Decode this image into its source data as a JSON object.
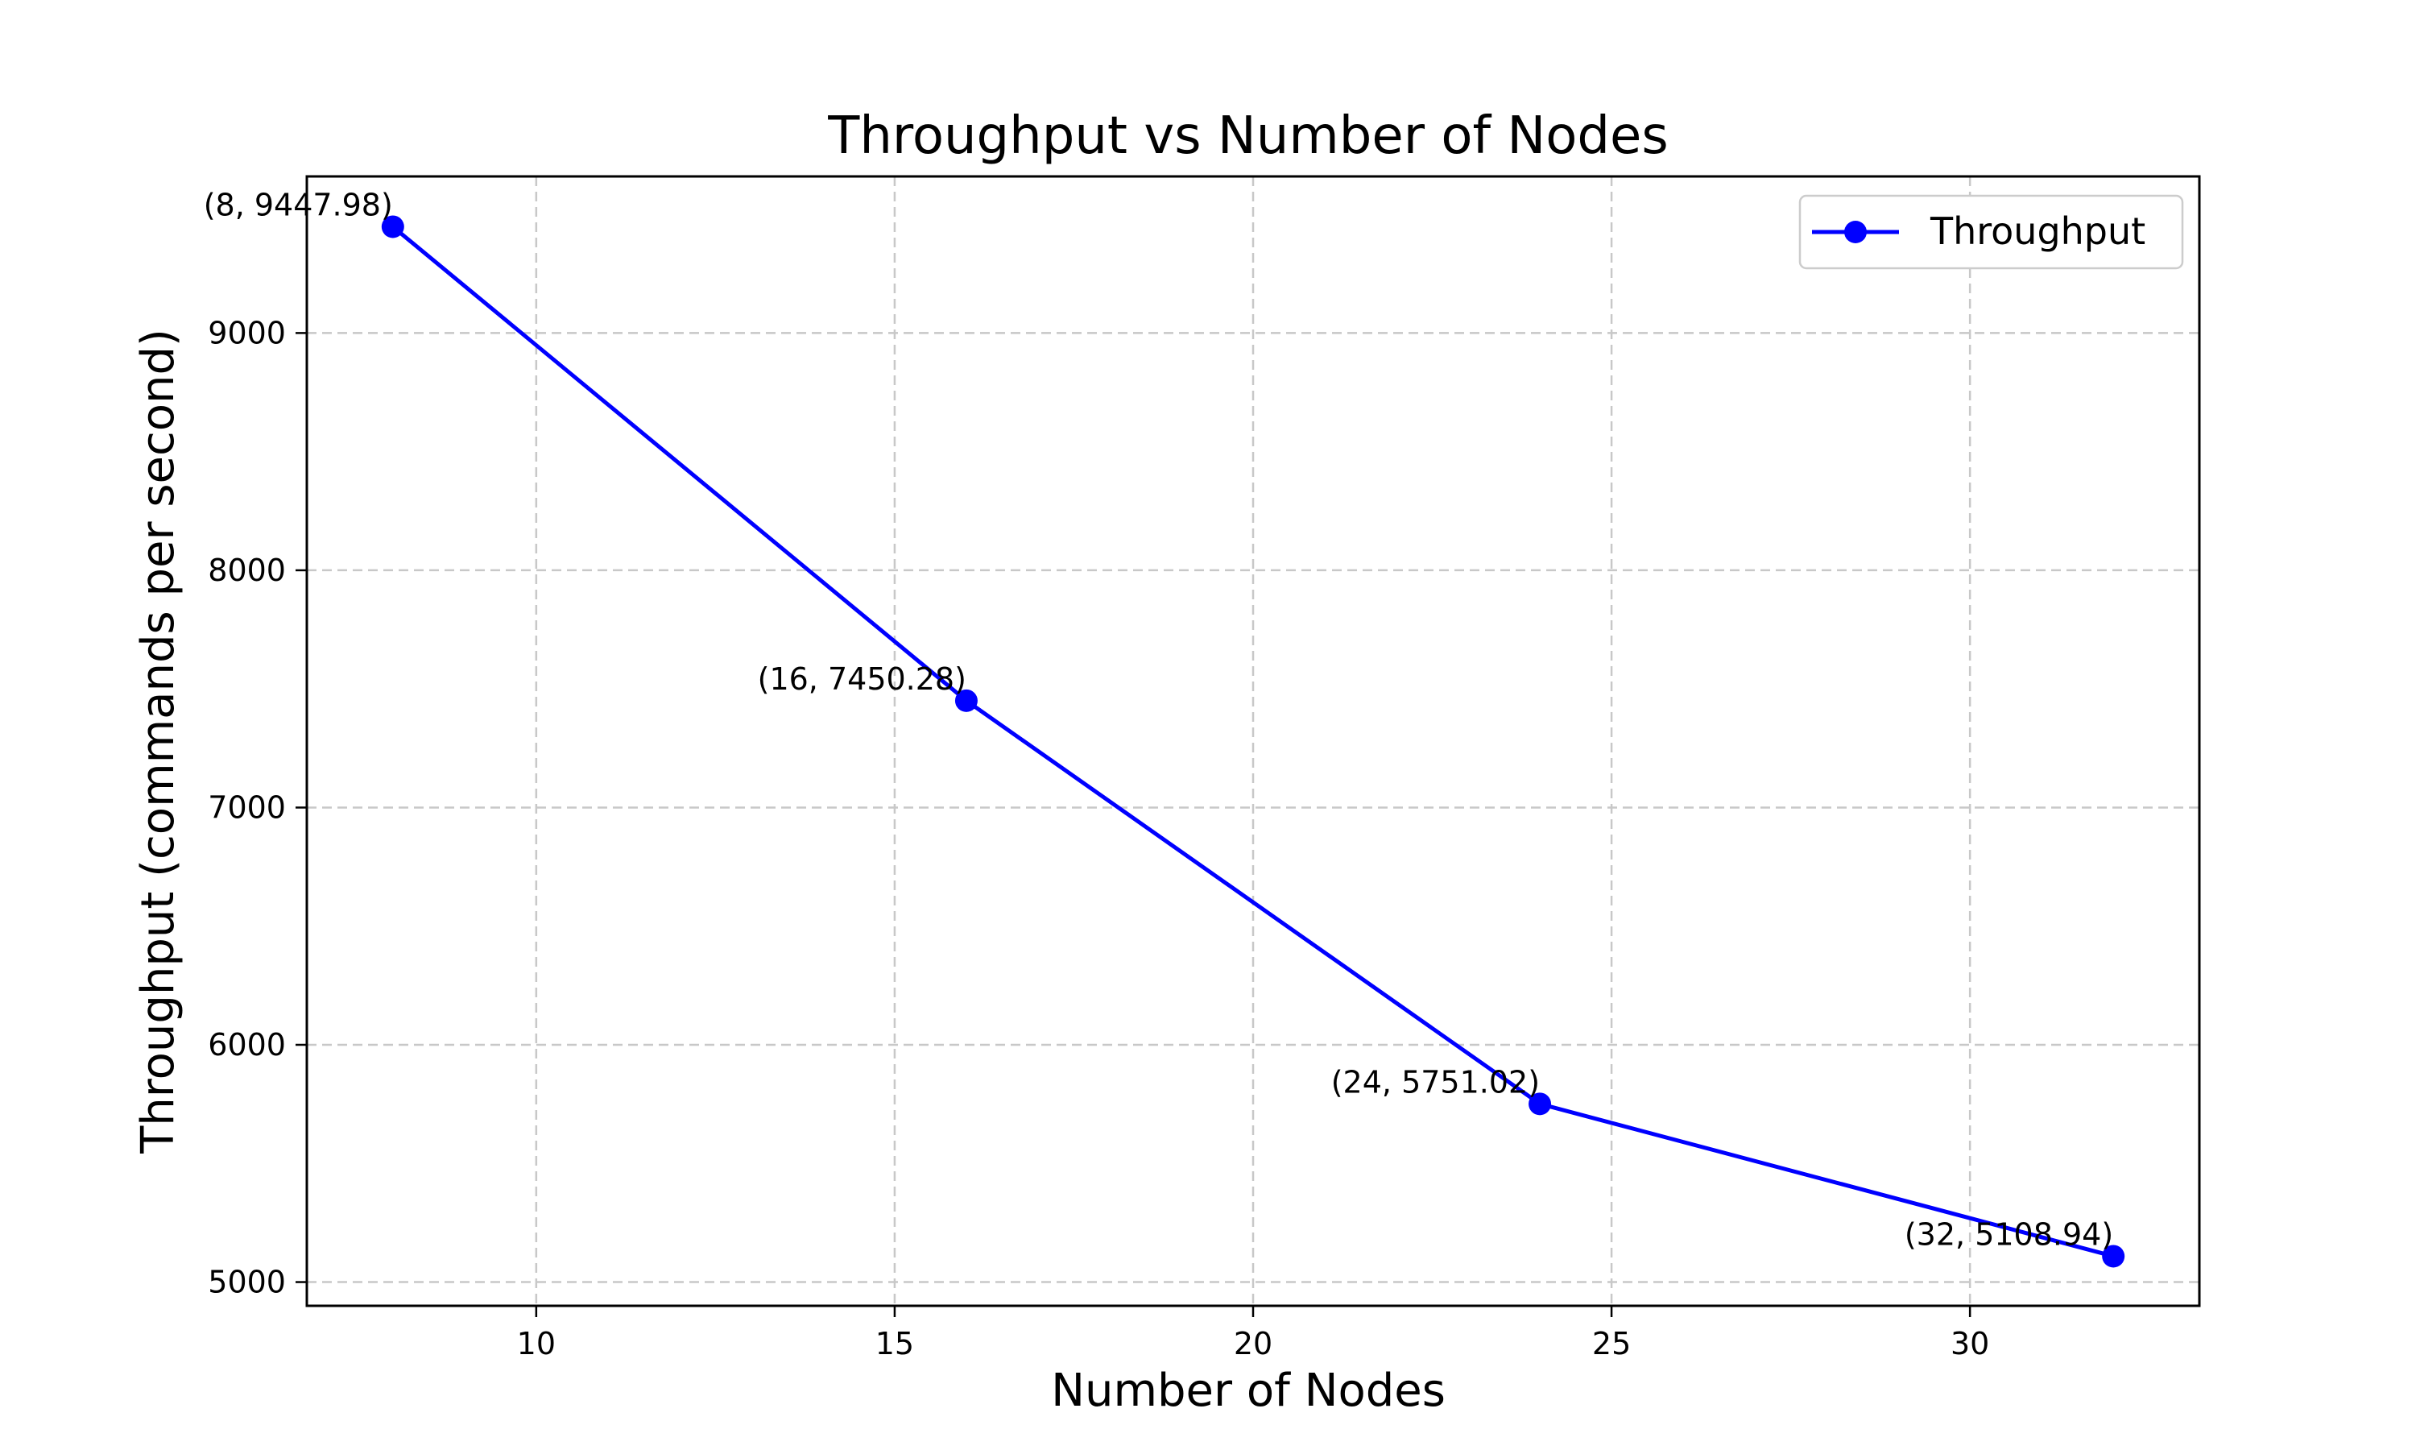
{
  "chart_data": {
    "type": "line",
    "title": "Throughput vs Number of Nodes",
    "xlabel": "Number of Nodes",
    "ylabel": "Throughput (commands per second)",
    "xlim": [
      6.8,
      33.2
    ],
    "ylim": [
      4900,
      9660
    ],
    "xticks": [
      10,
      15,
      20,
      25,
      30
    ],
    "yticks": [
      5000,
      6000,
      7000,
      8000,
      9000
    ],
    "grid": true,
    "legend_position": "top-right",
    "series": [
      {
        "name": "Throughput",
        "color": "#0000ff",
        "marker": "circle",
        "x": [
          8,
          16,
          24,
          32
        ],
        "y": [
          9447.98,
          7450.28,
          5751.02,
          5108.94
        ]
      }
    ],
    "annotations": [
      "(8, 9447.98)",
      "(16, 7450.28)",
      "(24, 5751.02)",
      "(32, 5108.94)"
    ]
  }
}
